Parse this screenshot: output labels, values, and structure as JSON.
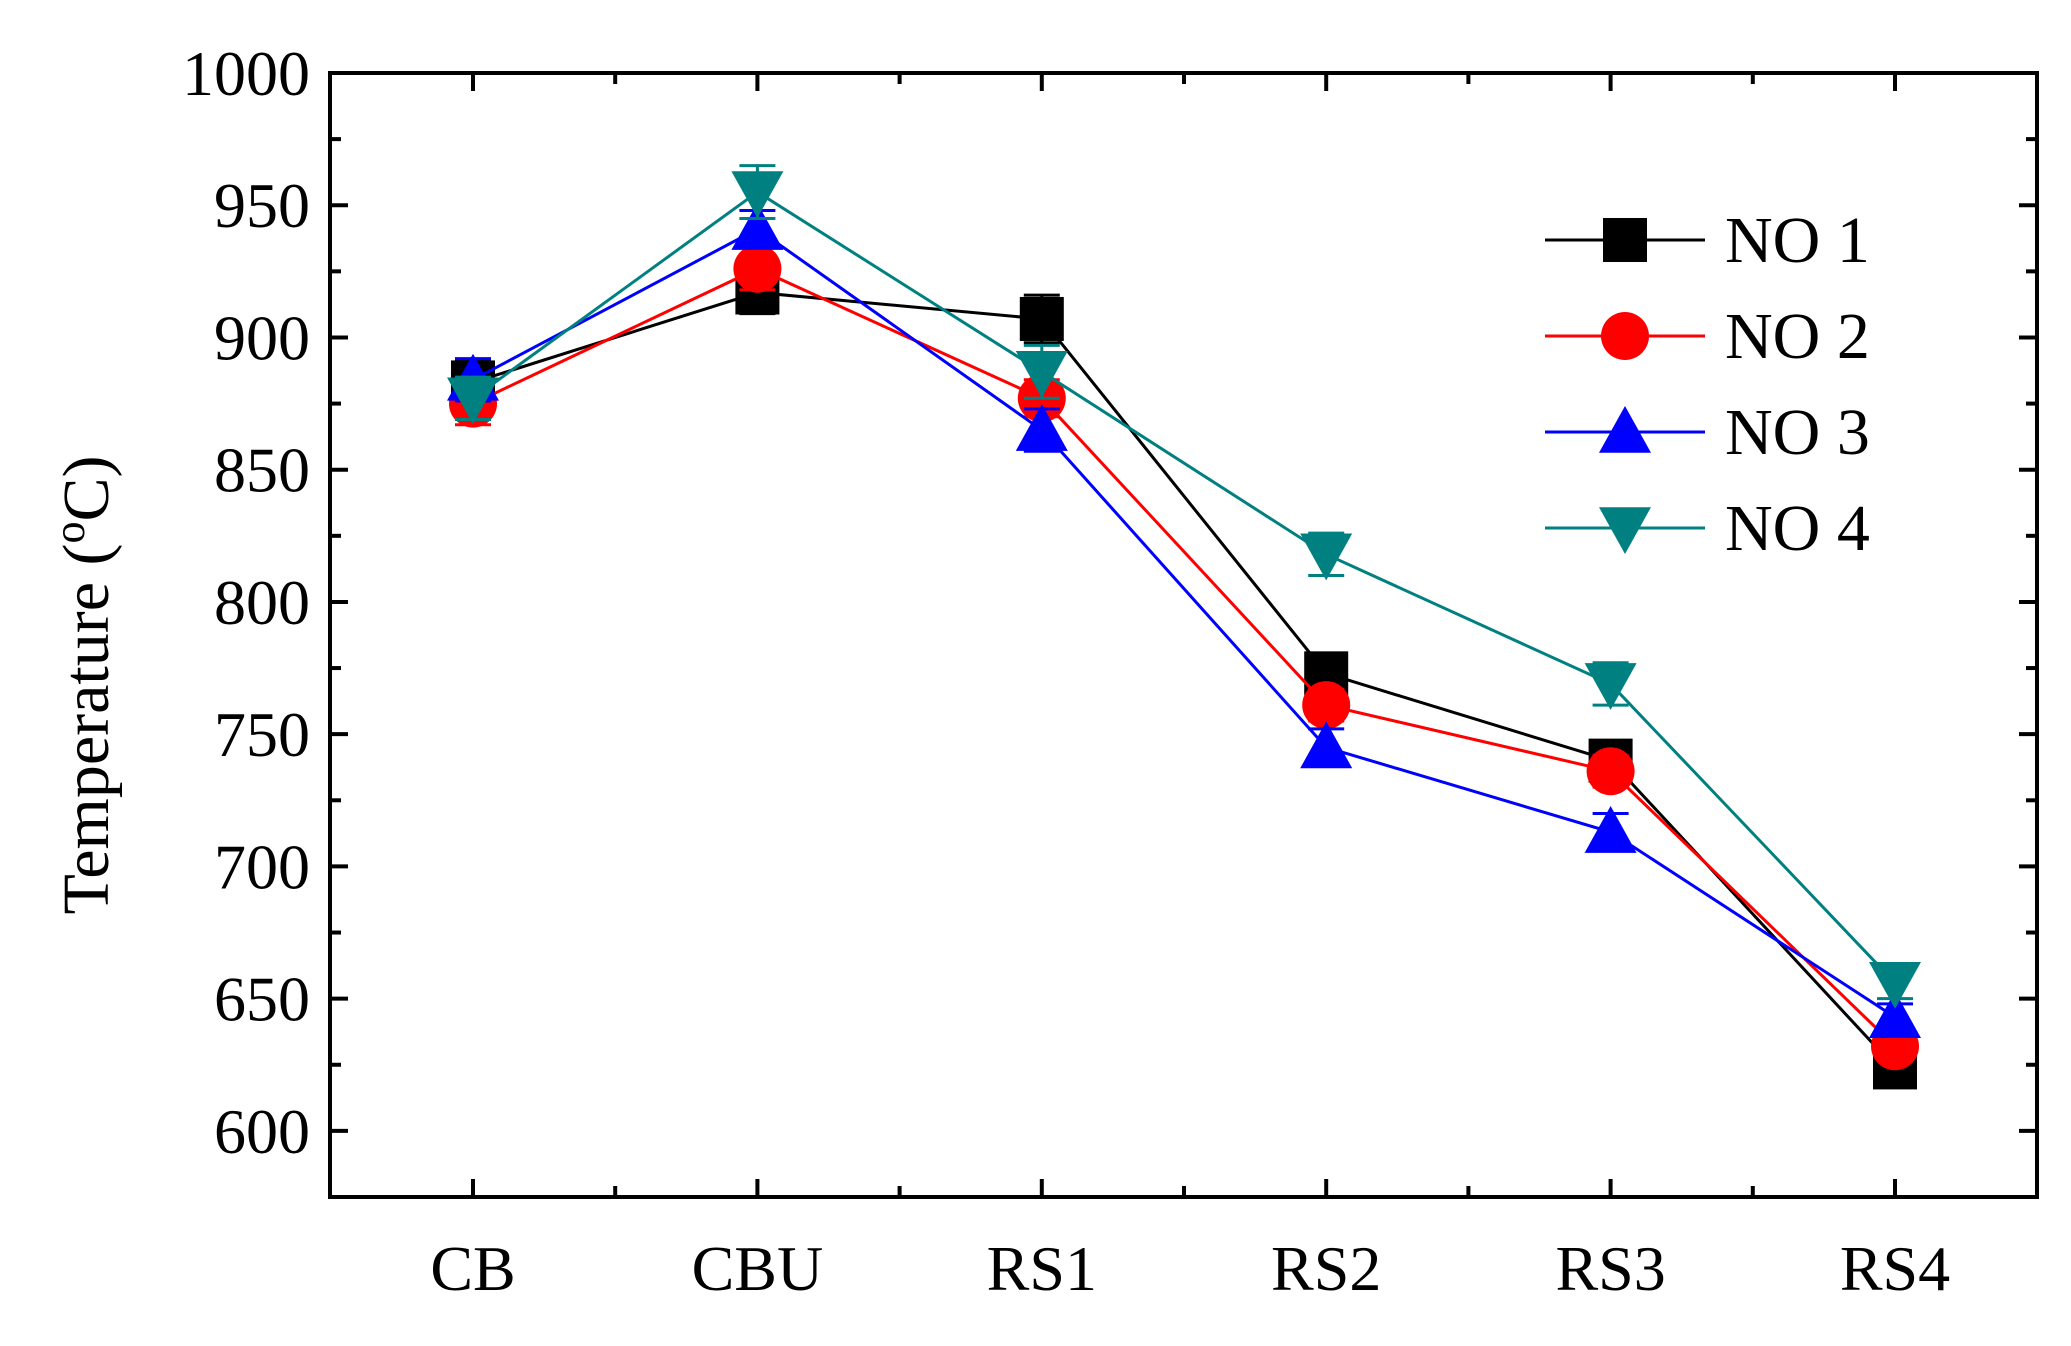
{
  "chart_data": {
    "type": "line",
    "title": "",
    "xlabel": "",
    "ylabel": "Temperature (",
    "ylabel_super": "o",
    "ylabel_suffix": "C)",
    "categories": [
      "CB",
      "CBU",
      "RS1",
      "RS2",
      "RS3",
      "RS4"
    ],
    "ylim": [
      575,
      1000
    ],
    "yticks": [
      "600",
      "650",
      "700",
      "750",
      "800",
      "850",
      "900",
      "950",
      "1000"
    ],
    "grid": false,
    "legend_position": "top-right",
    "series": [
      {
        "name": "NO 1",
        "color": "#000000",
        "marker": "square",
        "values": [
          883,
          917,
          907,
          773,
          740,
          624
        ],
        "errors": [
          8,
          8,
          9,
          6,
          6,
          5
        ]
      },
      {
        "name": "NO 2",
        "color": "#ff0000",
        "marker": "circle",
        "values": [
          875,
          926,
          877,
          761,
          736,
          632
        ],
        "errors": [
          8,
          8,
          7,
          6,
          6,
          5
        ]
      },
      {
        "name": "NO 3",
        "color": "#0000ff",
        "marker": "triangle-up",
        "values": [
          884,
          941,
          865,
          745,
          713,
          643
        ],
        "errors": [
          8,
          7,
          8,
          7,
          7,
          5
        ]
      },
      {
        "name": "NO 4",
        "color": "#008080",
        "marker": "triangle-down",
        "values": [
          877,
          955,
          887,
          818,
          769,
          656
        ],
        "errors": [
          8,
          10,
          10,
          8,
          8,
          6
        ]
      }
    ]
  }
}
